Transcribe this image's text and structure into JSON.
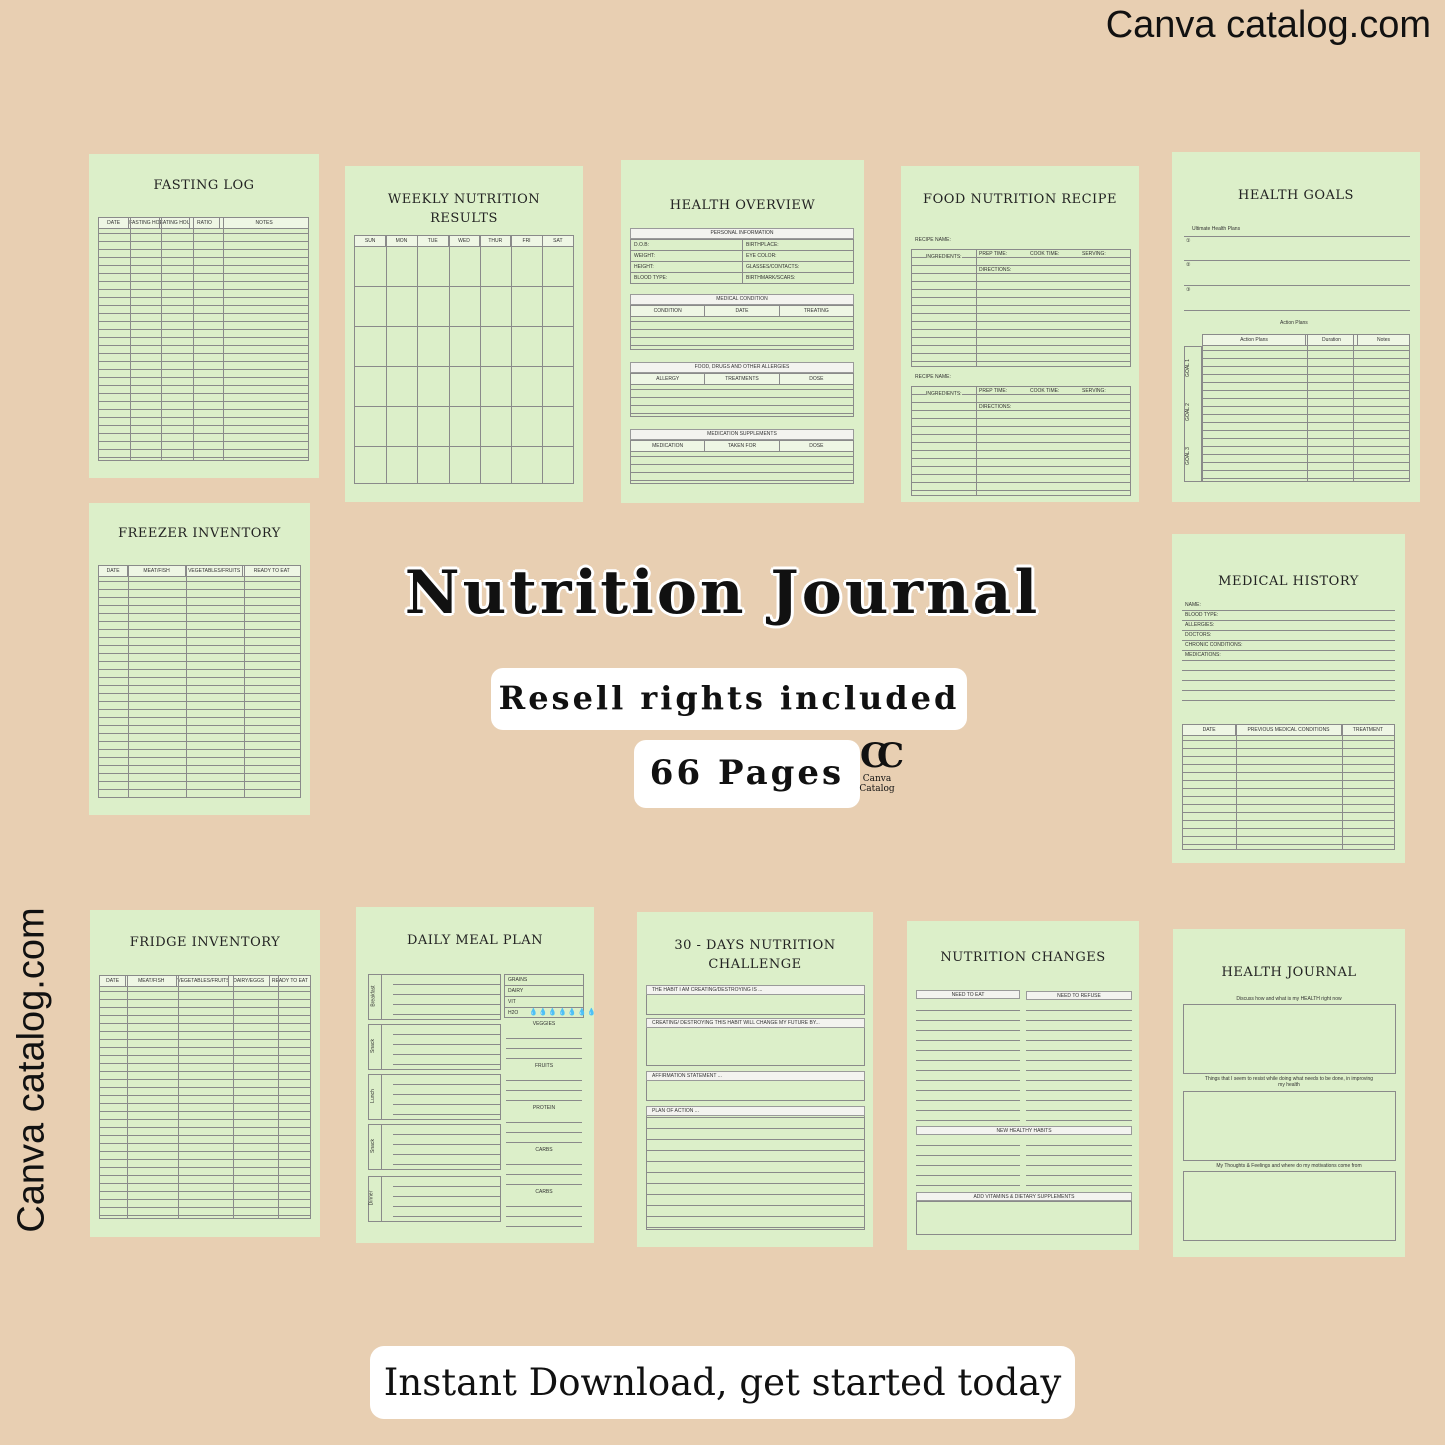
{
  "brand": {
    "top": "Canva catalog.com",
    "side": "Canva catalog.com"
  },
  "main": {
    "title": "Nutrition Journal",
    "resell": "Resell rights included",
    "pages": "66 Pages",
    "logo_text": "Canva Catalog",
    "cta": "Instant Download, get started today"
  },
  "pages": {
    "fasting_log": {
      "title": "FASTING LOG",
      "cols": [
        "DATE",
        "FASTING HOURS",
        "EATING HOURS",
        "RATIO",
        "NOTES"
      ]
    },
    "weekly": {
      "title": "WEEKLY NUTRITION RESULTS",
      "cols": [
        "SUN",
        "MON",
        "TUE",
        "WED",
        "THUR",
        "FRI",
        "SAT"
      ]
    },
    "health_overview": {
      "title": "HEALTH OVERVIEW",
      "personal": "PERSONAL INFORMATION",
      "personal_fields": [
        "D.O.B:",
        "BIRTHPLACE:",
        "WEIGHT:",
        "EYE COLOR:",
        "HEIGHT:",
        "GLASSES/CONTACTS:",
        "BLOOD TYPE:",
        "BIRTHMARK/SCARS:"
      ],
      "medical": "MEDICAL CONDITION",
      "medical_cols": [
        "CONDITION",
        "DATE",
        "TREATING"
      ],
      "allergies": "FOOD, DRUGS AND OTHER ALLERGIES",
      "allergy_cols": [
        "ALLERGY",
        "TREATMENTS",
        "DOSE"
      ],
      "supplements": "MEDICATION SUPPLEMENTS",
      "supp_cols": [
        "MEDICATION",
        "TAKEN FOR",
        "DOSE"
      ]
    },
    "recipe": {
      "title": "FOOD NUTRITION RECIPE",
      "recipe_name": "RECIPE NAME:",
      "ingredients": "INGREDIENTS:",
      "prep": "PREP TIME:",
      "cook": "COOK TIME:",
      "serving": "SERVING:",
      "directions": "DIRECTIONS:"
    },
    "health_goals": {
      "title": "HEALTH GOALS",
      "subtitle": "Ultimate Health Plans",
      "nums": [
        "①",
        "②",
        "③"
      ],
      "action": "Action Plans",
      "cols": [
        "Action Plans",
        "Duration",
        "Notes"
      ],
      "goals": [
        "GOAL 1",
        "GOAL 2",
        "GOAL 3"
      ]
    },
    "freezer": {
      "title": "FREEZER INVENTORY",
      "cols": [
        "DATE",
        "MEAT/FISH",
        "VEGETABLES/FRUITS",
        "READY TO EAT"
      ]
    },
    "medical_history": {
      "title": "MEDICAL HISTORY",
      "fields": [
        "NAME:",
        "BLOOD TYPE:",
        "ALLERGIES:",
        "DOCTORS:",
        "CHRONIC CONDITIONS:",
        "MEDICATIONS:"
      ],
      "cols": [
        "DATE",
        "PREVIOUS MEDICAL CONDITIONS",
        "TREATMENT"
      ]
    },
    "fridge": {
      "title": "FRIDGE INVENTORY",
      "cols": [
        "DATE",
        "MEAT/FISH",
        "VEGETABLES/FRUITS",
        "DAIRY/EGGS",
        "READY TO EAT"
      ]
    },
    "meal_plan": {
      "title": "DAILY MEAL PLAN",
      "meals": [
        "Breakfast",
        "Snack",
        "Lunch",
        "Snack",
        "Dinner"
      ],
      "trackers": [
        "GRAINS",
        "DAIRY",
        "VIT",
        "H2O"
      ],
      "groups": [
        "VEGGIES",
        "FRUITS",
        "PROTEIN",
        "CARBS",
        "CARBS"
      ]
    },
    "challenge": {
      "title": "30 - DAYS NUTRITION CHALLENGE",
      "prompts": [
        "THE HABIT I AM CREATING/DESTROYING IS ...",
        "CREATING/ DESTROYING THIS HABIT WILL CHANGE MY FUTURE BY...",
        "AFFIRMATION STATEMENT ...",
        "PLAN OF ACTION ..."
      ]
    },
    "changes": {
      "title": "NUTRITION CHANGES",
      "eat": "NEED TO EAT",
      "refuse": "NEED TO REFUSE",
      "habits": "NEW HEALTHY HABITS",
      "vitamins": "ADD VITAMINS & DIETARY SUPPLEMENTS"
    },
    "journal": {
      "title": "HEALTH JOURNAL",
      "p1": "Discuss how and what is my HEALTH right now",
      "p2": "Things that I seem to resist while doing what needs to be done, in improving my health",
      "p3": "My Thoughts & Feelings and where do my motivations come from"
    }
  }
}
